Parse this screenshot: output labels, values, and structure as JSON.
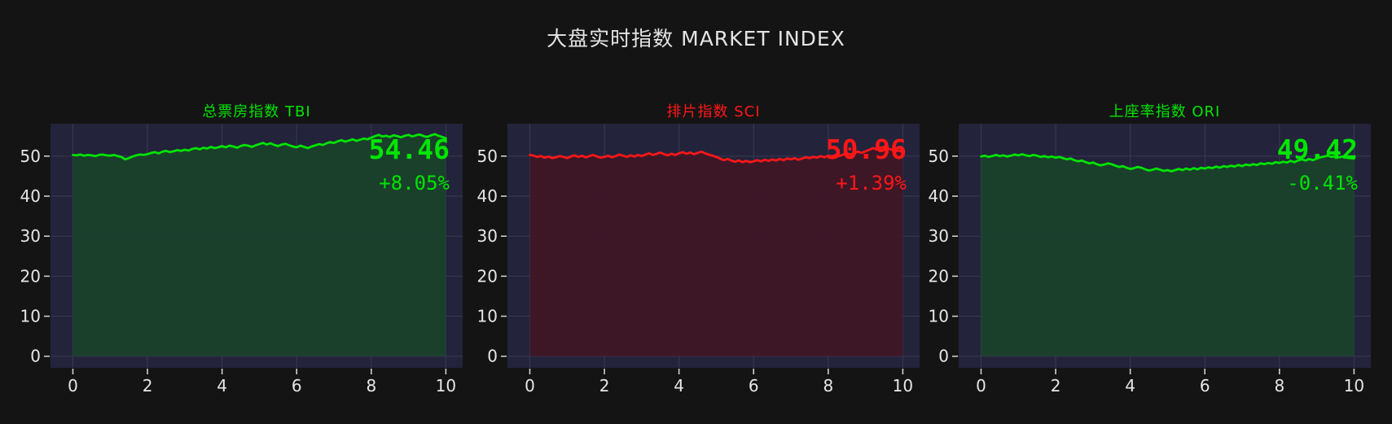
{
  "page_title": "大盘实时指数 MARKET INDEX",
  "colors": {
    "page_bg": "#141414",
    "plot_bg": "#23233c",
    "grid": "#3a3a52",
    "tick_mark": "#cfcfcf",
    "tick_label": "#e6e6e6",
    "main_title": "#e4e4e4",
    "up_green": "#00e400",
    "down_red": "#ff1717"
  },
  "chart_data": [
    {
      "type": "area",
      "title": "总票房指数 TBI",
      "accent": "#00e400",
      "fill": "#1a422c",
      "value": "54.46",
      "change": "+8.05%",
      "value_color": "#00e400",
      "change_color": "#00e400",
      "xlabel": "",
      "ylabel": "",
      "x_ticks": [
        0,
        2,
        4,
        6,
        8,
        10
      ],
      "y_ticks": [
        0,
        10,
        20,
        30,
        40,
        50
      ],
      "xlim": [
        -0.6,
        10.45
      ],
      "ylim": [
        -2.9,
        58.1
      ],
      "x_start": 0,
      "x_step": 0.1,
      "baseline": 0,
      "y": [
        50.3,
        50.2,
        50.4,
        50.1,
        50.3,
        50.2,
        50.0,
        50.3,
        50.4,
        50.2,
        50.1,
        50.3,
        50.0,
        49.8,
        49.2,
        49.5,
        49.9,
        50.2,
        50.4,
        50.3,
        50.5,
        50.8,
        51.0,
        50.7,
        51.1,
        51.3,
        51.0,
        51.2,
        51.5,
        51.3,
        51.6,
        51.4,
        51.8,
        52.0,
        51.7,
        52.1,
        51.9,
        52.3,
        52.0,
        52.2,
        52.5,
        52.2,
        52.6,
        52.4,
        52.1,
        52.5,
        52.8,
        52.6,
        52.3,
        52.7,
        53.0,
        53.3,
        52.9,
        53.2,
        52.8,
        52.5,
        52.9,
        53.1,
        52.7,
        52.4,
        52.2,
        52.6,
        52.3,
        52.0,
        52.4,
        52.7,
        53.0,
        52.8,
        53.2,
        53.5,
        53.3,
        53.7,
        54.0,
        53.6,
        53.9,
        54.2,
        53.8,
        54.1,
        54.4,
        54.2,
        54.6,
        55.0,
        55.3,
        54.9,
        55.1,
        54.8,
        55.2,
        55.0,
        54.7,
        55.1,
        55.3,
        54.9,
        55.2,
        55.4,
        55.0,
        54.8,
        55.2,
        55.5,
        55.1,
        54.8,
        54.46
      ]
    },
    {
      "type": "area",
      "title": "排片指数 SCI",
      "accent": "#ff1717",
      "fill": "#3f1726",
      "value": "50.96",
      "change": "+1.39%",
      "value_color": "#ff1717",
      "change_color": "#ff1717",
      "xlabel": "",
      "ylabel": "",
      "x_ticks": [
        0,
        2,
        4,
        6,
        8,
        10
      ],
      "y_ticks": [
        0,
        10,
        20,
        30,
        40,
        50
      ],
      "xlim": [
        -0.6,
        10.45
      ],
      "ylim": [
        -2.9,
        58.1
      ],
      "x_start": 0,
      "x_step": 0.1,
      "baseline": 0,
      "y": [
        50.3,
        50.1,
        49.8,
        50.0,
        49.6,
        49.9,
        49.5,
        49.7,
        50.0,
        49.8,
        49.5,
        49.9,
        50.2,
        49.8,
        50.1,
        49.7,
        50.0,
        50.3,
        49.9,
        49.6,
        49.8,
        50.1,
        49.7,
        50.0,
        50.4,
        50.1,
        49.8,
        50.2,
        49.9,
        50.3,
        50.0,
        50.4,
        50.7,
        50.3,
        50.6,
        50.9,
        50.5,
        50.2,
        50.6,
        50.3,
        50.7,
        51.0,
        50.6,
        50.9,
        50.5,
        50.8,
        51.1,
        50.7,
        50.4,
        50.1,
        49.8,
        49.4,
        49.0,
        49.3,
        48.9,
        48.6,
        48.9,
        48.5,
        48.8,
        48.5,
        48.7,
        49.0,
        48.7,
        49.1,
        48.8,
        49.2,
        48.9,
        49.3,
        49.0,
        49.4,
        49.2,
        49.5,
        49.1,
        49.4,
        49.7,
        49.5,
        49.8,
        49.6,
        50.0,
        49.7,
        50.1,
        49.9,
        50.3,
        50.0,
        50.4,
        50.7,
        50.4,
        50.8,
        51.1,
        50.8,
        51.2,
        51.6,
        52.0,
        51.7,
        52.1,
        52.3,
        51.9,
        51.6,
        51.2,
        51.4,
        50.96
      ]
    },
    {
      "type": "area",
      "title": "上座率指数 ORI",
      "accent": "#00e400",
      "fill": "#1a422c",
      "value": "49.42",
      "change": "-0.41%",
      "value_color": "#00e400",
      "change_color": "#00e400",
      "xlabel": "",
      "ylabel": "",
      "x_ticks": [
        0,
        2,
        4,
        6,
        8,
        10
      ],
      "y_ticks": [
        0,
        10,
        20,
        30,
        40,
        50
      ],
      "xlim": [
        -0.6,
        10.45
      ],
      "ylim": [
        -2.9,
        58.1
      ],
      "x_start": 0,
      "x_step": 0.1,
      "baseline": 0,
      "y": [
        49.9,
        50.1,
        49.8,
        50.0,
        50.3,
        50.0,
        50.2,
        49.9,
        50.1,
        50.4,
        50.2,
        50.5,
        50.2,
        50.0,
        50.3,
        50.1,
        49.8,
        50.0,
        49.7,
        49.9,
        49.6,
        49.8,
        49.5,
        49.2,
        49.4,
        49.0,
        48.7,
        48.9,
        48.5,
        48.2,
        48.4,
        48.0,
        47.7,
        47.9,
        48.2,
        48.0,
        47.6,
        47.3,
        47.5,
        47.1,
        46.8,
        47.0,
        47.3,
        47.1,
        46.7,
        46.4,
        46.6,
        46.9,
        46.6,
        46.3,
        46.5,
        46.2,
        46.5,
        46.8,
        46.5,
        46.9,
        46.6,
        47.0,
        46.7,
        47.1,
        46.9,
        47.2,
        47.0,
        47.4,
        47.1,
        47.5,
        47.3,
        47.6,
        47.4,
        47.8,
        47.5,
        47.9,
        47.7,
        48.0,
        47.8,
        48.2,
        48.0,
        48.3,
        48.1,
        48.5,
        48.3,
        48.6,
        48.4,
        48.8,
        48.5,
        48.9,
        49.2,
        48.9,
        49.3,
        49.0,
        49.4,
        49.7,
        49.9,
        50.1,
        49.8,
        50.0,
        49.7,
        49.9,
        49.6,
        49.5,
        49.42
      ]
    }
  ],
  "layout": {
    "panel_lefts": [
      18,
      579,
      1133
    ]
  }
}
